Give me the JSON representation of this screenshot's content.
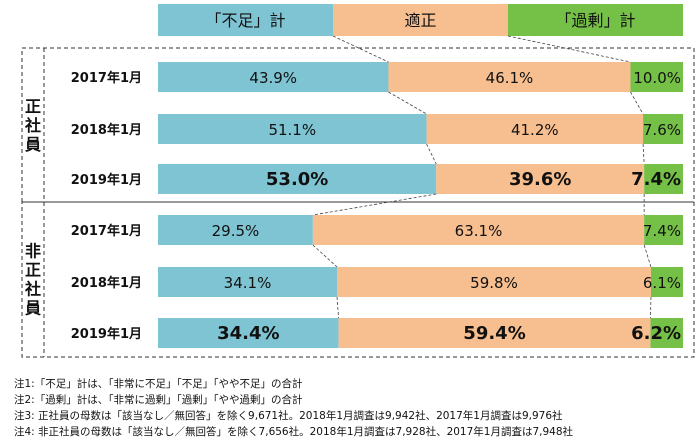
{
  "chart_data": {
    "type": "bar",
    "orientation": "horizontal",
    "stacked": "100%",
    "legend": [
      "「不足」計",
      "適正",
      "「過剰」計"
    ],
    "colors": [
      "#7ec4d3",
      "#f7bf90",
      "#75c046"
    ],
    "groups": [
      {
        "label": "正社員",
        "rows": [
          {
            "label": "2017年1月",
            "values": [
              43.9,
              46.1,
              10.0
            ],
            "labels": [
              "43.9%",
              "46.1%",
              "10.0%"
            ],
            "bold": false
          },
          {
            "label": "2018年1月",
            "values": [
              51.1,
              41.2,
              7.6
            ],
            "labels": [
              "51.1%",
              "41.2%",
              "7.6%"
            ],
            "bold": false
          },
          {
            "label": "2019年1月",
            "values": [
              53.0,
              39.6,
              7.4
            ],
            "labels": [
              "53.0%",
              "39.6%",
              "7.4%"
            ],
            "bold": true
          }
        ]
      },
      {
        "label": "非正社員",
        "rows": [
          {
            "label": "2017年1月",
            "values": [
              29.5,
              63.1,
              7.4
            ],
            "labels": [
              "29.5%",
              "63.1%",
              "7.4%"
            ],
            "bold": false
          },
          {
            "label": "2018年1月",
            "values": [
              34.1,
              59.8,
              6.1
            ],
            "labels": [
              "34.1%",
              "59.8%",
              "6.1%"
            ],
            "bold": false
          },
          {
            "label": "2019年1月",
            "values": [
              34.4,
              59.4,
              6.2
            ],
            "labels": [
              "34.4%",
              "59.4%",
              "6.2%"
            ],
            "bold": true
          }
        ]
      }
    ]
  },
  "notes": [
    "注1:「不足」計は、「非常に不足」「不足」「やや不足」の合計",
    "注2:「過剰」計は、「非常に過剰」「過剰」「やや過剰」の合計",
    "注3: 正社員の母数は「該当なし／無回答」を除く9,671社。2018年1月調査は9,942社、2017年1月調査は9,976社",
    "注4: 非正社員の母数は「該当なし／無回答」を除く7,656社。2018年1月調査は7,928社、2017年1月調査は7,948社"
  ]
}
